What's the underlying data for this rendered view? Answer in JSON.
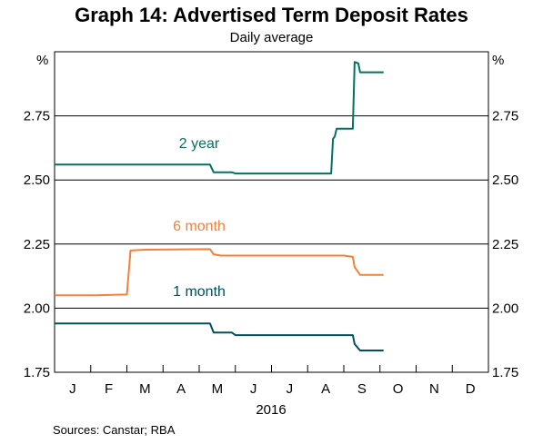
{
  "title": "Graph 14: Advertised Term Deposit Rates",
  "subtitle": "Daily average",
  "sources": "Sources:  Canstar; RBA",
  "chart_data": {
    "type": "line",
    "title": "Graph 14: Advertised Term Deposit Rates",
    "subtitle": "Daily average",
    "ylabel": "%",
    "ylabel_right": "%",
    "ylim": [
      1.75,
      3.0
    ],
    "yticks": [
      "1.75",
      "2.00",
      "2.25",
      "2.50",
      "2.75"
    ],
    "grid": "horizontal",
    "x_unit": "month_index (0 = start of Jan 2016)",
    "xlim": [
      0,
      12
    ],
    "month_labels": [
      "J",
      "F",
      "M",
      "A",
      "M",
      "J",
      "J",
      "A",
      "S",
      "O",
      "N",
      "D"
    ],
    "year_label": "2016",
    "series": [
      {
        "name": "2 year",
        "color": "#00725f",
        "points": [
          [
            0,
            2.56
          ],
          [
            4.3,
            2.56
          ],
          [
            4.4,
            2.53
          ],
          [
            4.9,
            2.53
          ],
          [
            5.0,
            2.525
          ],
          [
            7.65,
            2.525
          ],
          [
            7.7,
            2.66
          ],
          [
            7.75,
            2.67
          ],
          [
            7.8,
            2.7
          ],
          [
            8.25,
            2.7
          ],
          [
            8.3,
            2.96
          ],
          [
            8.4,
            2.955
          ],
          [
            8.45,
            2.92
          ],
          [
            9.1,
            2.92
          ]
        ]
      },
      {
        "name": "6 month",
        "color": "#f3803a",
        "points": [
          [
            0,
            2.05
          ],
          [
            1.15,
            2.05
          ],
          [
            1.6,
            2.052
          ],
          [
            2.0,
            2.053
          ],
          [
            2.1,
            2.225
          ],
          [
            2.5,
            2.228
          ],
          [
            4.3,
            2.23
          ],
          [
            4.4,
            2.21
          ],
          [
            4.6,
            2.205
          ],
          [
            8.0,
            2.205
          ],
          [
            8.25,
            2.2
          ],
          [
            8.3,
            2.16
          ],
          [
            8.45,
            2.13
          ],
          [
            9.1,
            2.13
          ]
        ]
      },
      {
        "name": "1 month",
        "color": "#00505a",
        "points": [
          [
            0,
            1.94
          ],
          [
            4.3,
            1.94
          ],
          [
            4.4,
            1.905
          ],
          [
            4.9,
            1.905
          ],
          [
            5.0,
            1.895
          ],
          [
            8.25,
            1.895
          ],
          [
            8.3,
            1.86
          ],
          [
            8.45,
            1.835
          ],
          [
            9.1,
            1.835
          ]
        ]
      }
    ]
  }
}
